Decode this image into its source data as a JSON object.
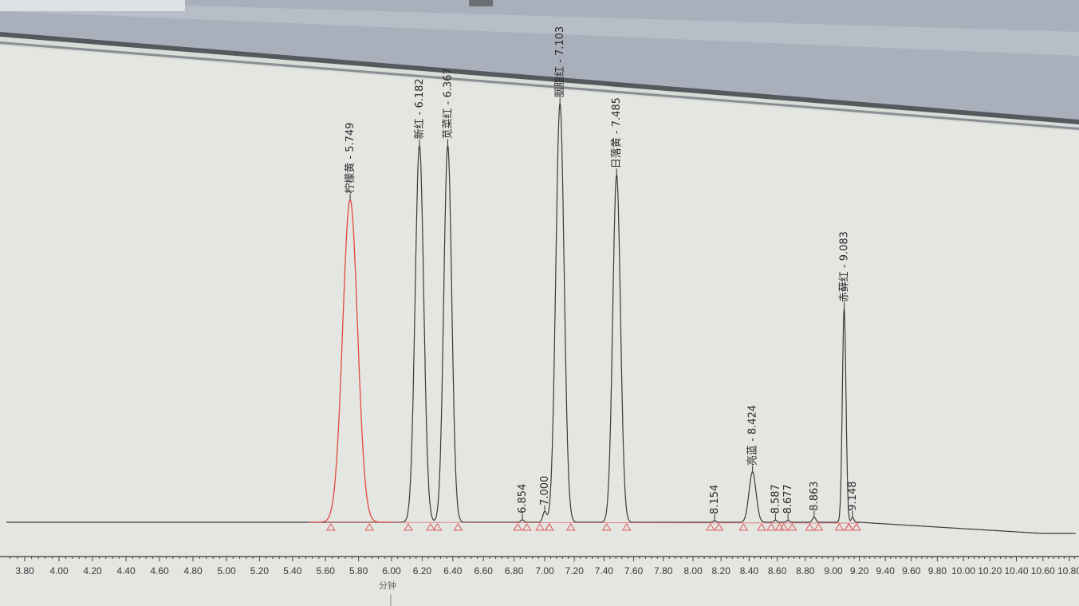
{
  "chart_data": {
    "type": "line",
    "title": "",
    "xlabel": "分钟",
    "ylabel": "",
    "xlim": [
      3.7,
      10.85
    ],
    "x_ticks": [
      "3.80",
      "4.00",
      "4.20",
      "4.40",
      "4.60",
      "4.80",
      "5.00",
      "5.20",
      "5.40",
      "5.60",
      "5.80",
      "6.00",
      "6.20",
      "6.40",
      "6.60",
      "6.80",
      "7.00",
      "7.20",
      "7.40",
      "7.60",
      "7.80",
      "8.00",
      "8.20",
      "8.40",
      "8.60",
      "8.80",
      "9.00",
      "9.20",
      "9.40",
      "9.60",
      "9.80",
      "10.00",
      "10.20",
      "10.40",
      "10.60",
      "10.80"
    ],
    "y_units": "relative height (tallest peak = 100)",
    "grid": false,
    "colors": {
      "first_trace": "#e0483c",
      "trace": "#3a3a3a",
      "integration_marks": "#e05a5a",
      "background": "#e4e6e2"
    },
    "peaks": [
      {
        "label": "柠檬黄 - 5.749",
        "time": 5.749,
        "height": 77,
        "color": "red",
        "width": 0.045
      },
      {
        "label": "新红 - 6.182",
        "time": 6.182,
        "height": 90,
        "width": 0.028
      },
      {
        "label": "苋菜红 - 6.367",
        "time": 6.367,
        "height": 90,
        "width": 0.026
      },
      {
        "label": "6.854",
        "time": 6.854,
        "height": 0.6,
        "width": 0.01
      },
      {
        "label": "7.000",
        "time": 7.0,
        "height": 2.5,
        "width": 0.012
      },
      {
        "label": "胭脂红 - 7.103",
        "time": 7.103,
        "height": 100,
        "width": 0.028
      },
      {
        "label": "日落黄 - 7.485",
        "time": 7.485,
        "height": 83,
        "width": 0.026
      },
      {
        "label": "8.154",
        "time": 8.154,
        "height": 0.4,
        "width": 0.01
      },
      {
        "label": "亮蓝 - 8.424",
        "time": 8.424,
        "height": 12,
        "width": 0.025
      },
      {
        "label": "8.587",
        "time": 8.587,
        "height": 0.5,
        "width": 0.01
      },
      {
        "label": "8.677",
        "time": 8.677,
        "height": 0.5,
        "width": 0.01
      },
      {
        "label": "8.863",
        "time": 8.863,
        "height": 1.2,
        "width": 0.012
      },
      {
        "label": "赤藓红 - 9.083",
        "time": 9.083,
        "height": 51,
        "width": 0.014
      },
      {
        "label": "9.148",
        "time": 9.148,
        "height": 1.2,
        "width": 0.01
      }
    ]
  }
}
